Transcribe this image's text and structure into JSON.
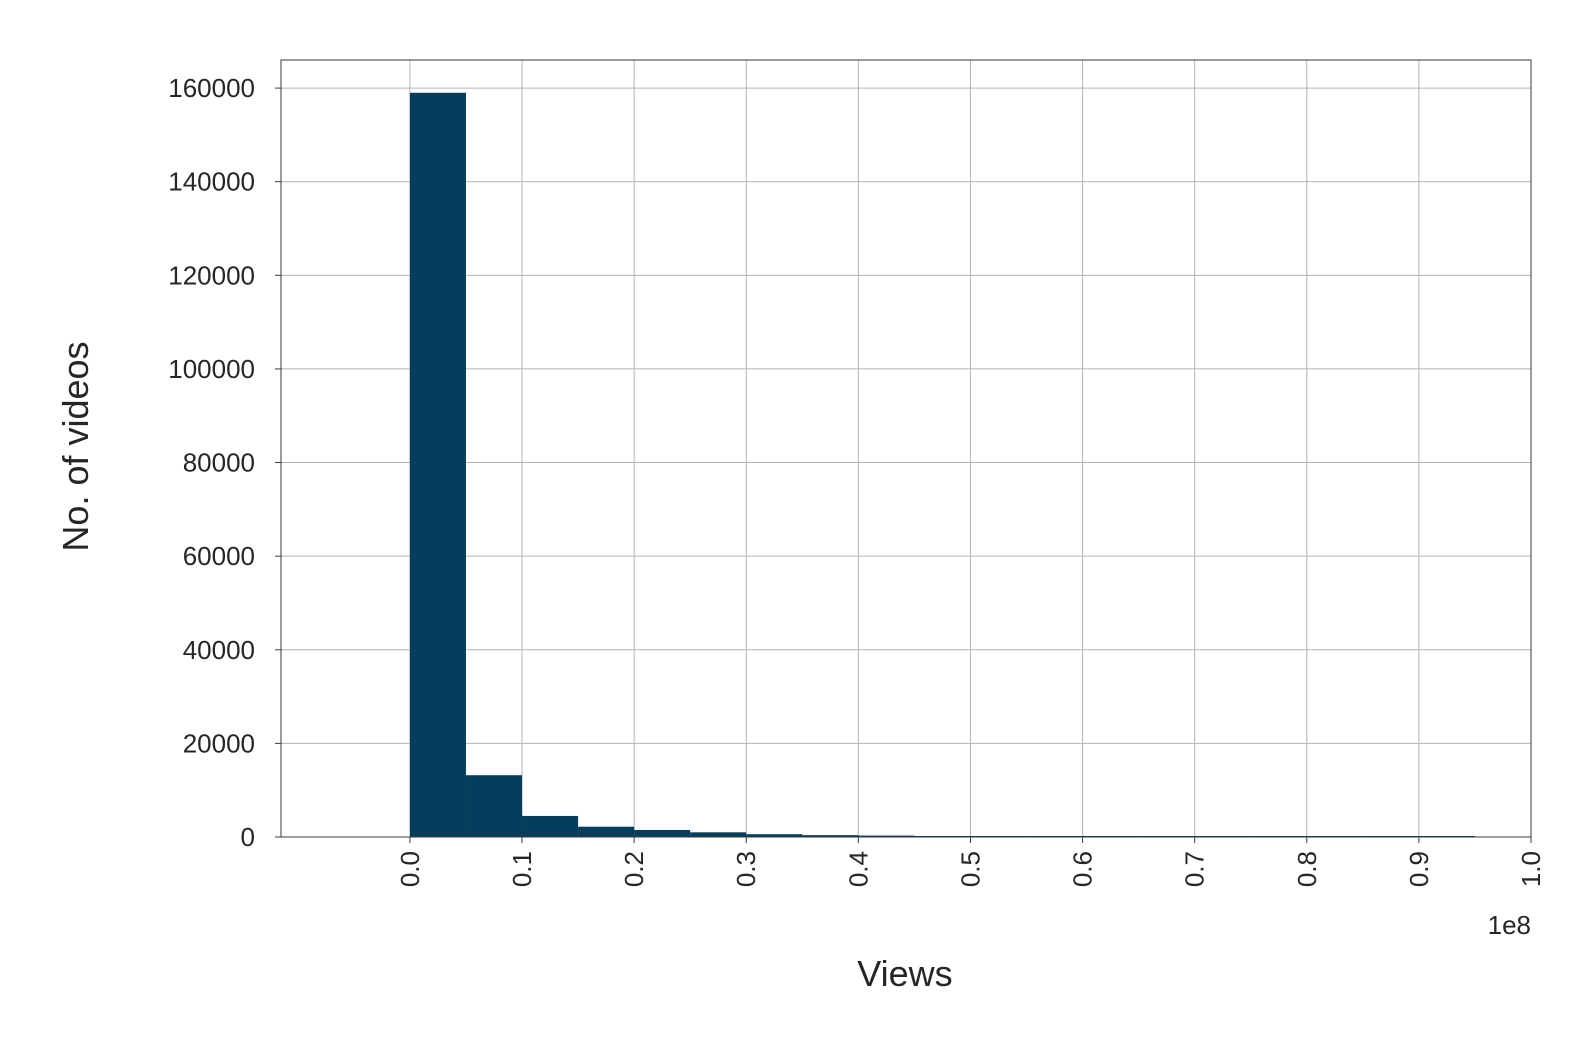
{
  "chart_data": {
    "type": "bar",
    "subtype": "histogram",
    "title": "",
    "xlabel": "Views",
    "ylabel": "No. of videos",
    "x_offset_label": "1e8",
    "xlim": [
      -0.115,
      1.0
    ],
    "ylim": [
      0,
      166000
    ],
    "grid": true,
    "bar_color": "#043e5c",
    "bin_width": 0.05,
    "bin_starts": [
      0.0,
      0.05,
      0.1,
      0.15,
      0.2,
      0.25,
      0.3,
      0.35,
      0.4,
      0.45,
      0.5,
      0.55,
      0.6,
      0.65,
      0.7,
      0.75,
      0.8,
      0.85,
      0.9
    ],
    "values": [
      159000,
      13200,
      4500,
      2200,
      1500,
      1000,
      600,
      400,
      300,
      200,
      150,
      120,
      100,
      80,
      70,
      60,
      50,
      40,
      30
    ],
    "x_ticks": [
      0.0,
      0.1,
      0.2,
      0.3,
      0.4,
      0.5,
      0.6,
      0.7,
      0.8,
      0.9,
      1.0
    ],
    "x_tick_labels": [
      "0.0",
      "0.1",
      "0.2",
      "0.3",
      "0.4",
      "0.5",
      "0.6",
      "0.7",
      "0.8",
      "0.9",
      "1.0"
    ],
    "y_ticks": [
      0,
      20000,
      40000,
      60000,
      80000,
      100000,
      120000,
      140000,
      160000
    ],
    "y_tick_labels": [
      "0",
      "20000",
      "40000",
      "60000",
      "80000",
      "100000",
      "120000",
      "140000",
      "160000"
    ]
  }
}
